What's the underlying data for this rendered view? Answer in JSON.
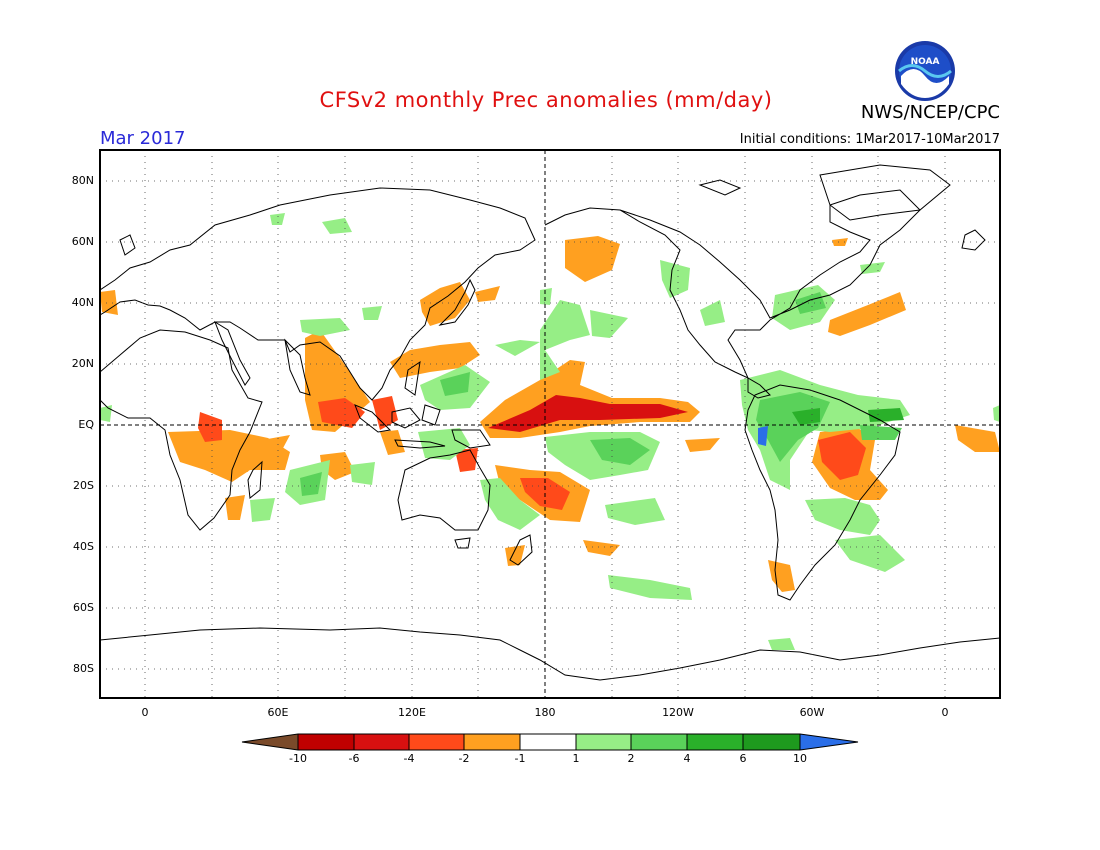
{
  "header": {
    "title": "CFSv2 monthly Prec anomalies (mm/day)",
    "organization": "NWS/NCEP/CPC",
    "logo_text": "NOAA",
    "month": "Mar 2017",
    "initial_conditions": "Initial conditions: 1Mar2017-10Mar2017"
  },
  "map": {
    "projection": "equirectangular",
    "central_longitude": 180,
    "lat_labels": [
      "80N",
      "60N",
      "40N",
      "20N",
      "EQ",
      "20S",
      "40S",
      "60S",
      "80S"
    ],
    "lon_labels": [
      "0",
      "60E",
      "120E",
      "180",
      "120W",
      "60W",
      "0"
    ],
    "grid": "dotted",
    "reference_lines": [
      "EQ",
      "180"
    ]
  },
  "colorbar": {
    "labels": [
      "-10",
      "-6",
      "-4",
      "-2",
      "-1",
      "1",
      "2",
      "4",
      "6",
      "10"
    ],
    "colors": [
      "#7a4a2a",
      "#c00000",
      "#d81010",
      "#ff4a1a",
      "#ffa020",
      "#ffffff",
      "#96ee86",
      "#5ad25a",
      "#2ab02a",
      "#1e9a1e",
      "#2a6ee8"
    ]
  },
  "colors": {
    "orange": "#ffa020",
    "red_orange": "#ff4a1a",
    "red": "#d81010",
    "light_green": "#96ee86",
    "green": "#5ad25a",
    "dark_green": "#2ab02a",
    "blue": "#2a6ee8"
  }
}
